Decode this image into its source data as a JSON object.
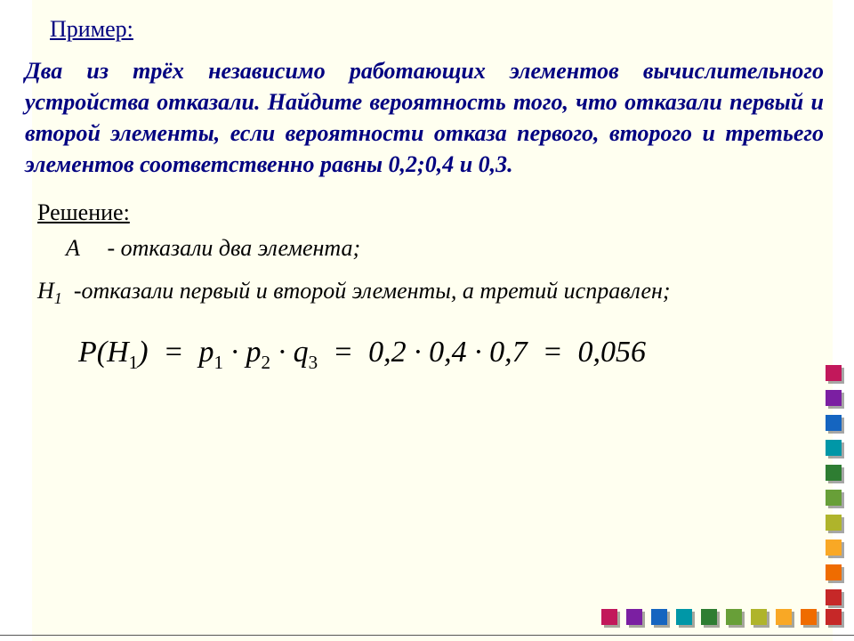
{
  "header": "Пример:",
  "problem": "Два из трёх независимо работающих элементов вычислительного устройства отказали. Найдите вероятность того, что отказали первый и второй элементы, если вероятности отказа первого, второго и третьего элементов соответственно равны 0,2;0,4 и 0,3.",
  "solution_title": "Решение:",
  "event_a": {
    "symbol": "A",
    "description": "- отказали два элемента;"
  },
  "event_h1": {
    "symbol_html": "H₁",
    "description": "-отказали первый и второй элементы, а третий исправлен;"
  },
  "formula": {
    "lhs": "P(H₁)",
    "rhs_symbolic": "p₁ · p₂ · q₃",
    "rhs_numbers": "0,2 · 0,4 · 0,7",
    "result": "0,056"
  },
  "deco": {
    "column_colors": [
      "#c2185b",
      "#7b1fa2",
      "#1565c0",
      "#0097a7",
      "#2e7d32",
      "#689f38",
      "#afb42b",
      "#f9a825",
      "#ef6c00",
      "#c62828"
    ],
    "row_colors": [
      "#c2185b",
      "#7b1fa2",
      "#1565c0",
      "#0097a7",
      "#2e7d32",
      "#689f38",
      "#afb42b",
      "#f9a825",
      "#ef6c00",
      "#c62828"
    ]
  }
}
